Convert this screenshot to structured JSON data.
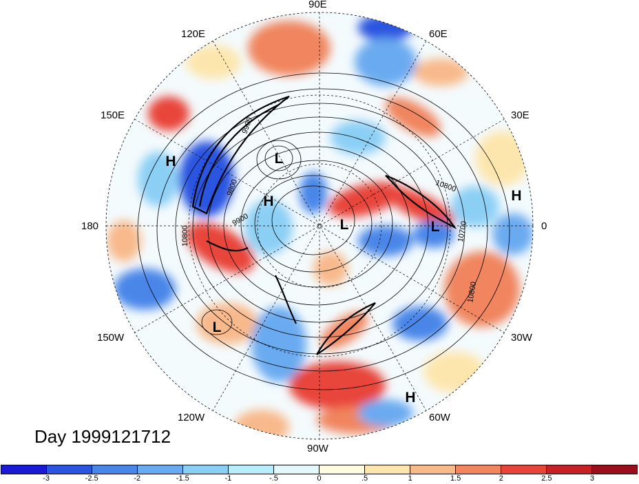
{
  "title": "Day 1999121712",
  "longitude_labels": [
    {
      "id": "90e",
      "text": "90E"
    },
    {
      "id": "60e",
      "text": "60E"
    },
    {
      "id": "120e",
      "text": "120E"
    },
    {
      "id": "150e",
      "text": "150E"
    },
    {
      "id": "30e",
      "text": "30E"
    },
    {
      "id": "180",
      "text": "180"
    },
    {
      "id": "0",
      "text": "0"
    },
    {
      "id": "150w",
      "text": "150W"
    },
    {
      "id": "30w",
      "text": "30W"
    },
    {
      "id": "120w",
      "text": "120W"
    },
    {
      "id": "60w",
      "text": "60W"
    },
    {
      "id": "90w",
      "text": "90W"
    }
  ],
  "pressure_centers": [
    {
      "type": "H"
    },
    {
      "type": "L"
    },
    {
      "type": "H"
    },
    {
      "type": "L"
    },
    {
      "type": "L"
    },
    {
      "type": "H"
    },
    {
      "type": "L"
    },
    {
      "type": "H"
    }
  ],
  "contour_labels": [
    "9800",
    "9900",
    "10800",
    "10700",
    "10800",
    "10800",
    "9900"
  ],
  "colorbar": {
    "levels": [
      "-3",
      "-2.5",
      "-2",
      "-1.5",
      "-1",
      "-.5",
      "0",
      ".5",
      "1",
      "1.5",
      "2",
      "2.5",
      "3"
    ],
    "colors": [
      "#1a1ad6",
      "#2a55e0",
      "#4a86e8",
      "#6aaaf0",
      "#8ccff5",
      "#b8eefb",
      "#e4f8fc",
      "#fffbe0",
      "#fde6ad",
      "#f8b98b",
      "#f0855f",
      "#e8453a",
      "#c62226",
      "#990f1e"
    ]
  }
}
